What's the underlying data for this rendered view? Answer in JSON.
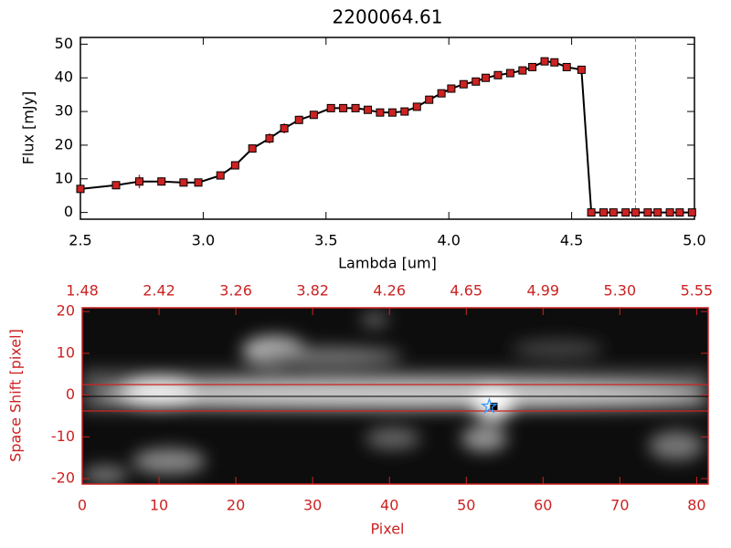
{
  "chart_data": [
    {
      "type": "line",
      "title": "2200064.61",
      "xlabel": "Lambda [um]",
      "ylabel": "Flux [mJy]",
      "x": [
        2.5,
        2.645,
        2.74,
        2.83,
        2.92,
        2.98,
        3.07,
        3.13,
        3.2,
        3.27,
        3.33,
        3.39,
        3.45,
        3.52,
        3.57,
        3.62,
        3.67,
        3.72,
        3.77,
        3.82,
        3.87,
        3.92,
        3.97,
        4.01,
        4.06,
        4.11,
        4.15,
        4.2,
        4.25,
        4.3,
        4.34,
        4.39,
        4.43,
        4.48,
        4.54,
        4.58,
        4.63,
        4.67,
        4.72,
        4.76,
        4.81,
        4.85,
        4.9,
        4.94,
        4.99
      ],
      "values": [
        7,
        8.1,
        9.2,
        9.2,
        8.9,
        8.9,
        11,
        14,
        19,
        22,
        25,
        27.5,
        29,
        31,
        31,
        31,
        30.5,
        29.7,
        29.7,
        30,
        31.4,
        33.5,
        35.4,
        36.8,
        38.1,
        38.9,
        40,
        40.8,
        41.4,
        42.2,
        43.2,
        44.9,
        44.6,
        43.2,
        42.4,
        0,
        0,
        0,
        0,
        0,
        0,
        0,
        0,
        0,
        0
      ],
      "errors": [
        1,
        1.2,
        2,
        1.2,
        0.8,
        0.8,
        1,
        1.2,
        1.2,
        1.5,
        1.5,
        1.2,
        1,
        1,
        1,
        0.8,
        0.8,
        0.8,
        0.8,
        0.8,
        1,
        1,
        1,
        1,
        1,
        1,
        1,
        1,
        1,
        1,
        1,
        1,
        1,
        1,
        1,
        0,
        0,
        0,
        0,
        0,
        0,
        0,
        0,
        0,
        0
      ],
      "color": "#000000",
      "marker_color": "#cc2222",
      "baseline_color": "#cc2222",
      "reference_x": 4.76,
      "reference_color": "#3399cc",
      "xlim": [
        2.5,
        5.0
      ],
      "ylim": [
        -2,
        52
      ],
      "xticks": [
        2.5,
        {
          "value": 3,
          "label": "3.0"
        },
        3.5,
        {
          "value": 4,
          "label": "4.0"
        },
        4.5,
        {
          "value": 5,
          "label": "5.0"
        }
      ],
      "yticks": [
        0,
        10,
        20,
        30,
        40,
        50
      ]
    },
    {
      "type": "image",
      "xlabel": "Pixel",
      "ylabel": "Space Shift [pixel]",
      "axis_color": "#cc2222",
      "xlim": [
        0,
        81.5
      ],
      "ylim": [
        -21.3,
        20.9
      ],
      "xticks": [
        0,
        10,
        20,
        30,
        40,
        50,
        60,
        70,
        80
      ],
      "yticks": [
        -20,
        -10,
        0,
        10,
        20
      ],
      "x2ticks": [
        {
          "value": 0,
          "label": "1.48"
        },
        {
          "value": 10,
          "label": "2.42"
        },
        {
          "value": 20,
          "label": "3.26"
        },
        {
          "value": 30,
          "label": "3.82"
        },
        {
          "value": 40,
          "label": "4.26"
        },
        {
          "value": 50,
          "label": "4.65"
        },
        {
          "value": 60,
          "label": "4.99"
        },
        {
          "value": 70,
          "label": "5.30"
        },
        {
          "value": 80,
          "label": "5.55"
        }
      ],
      "aperture": [
        -3.8,
        2.5
      ],
      "aperture_color": "#cc2222",
      "center": -0.3,
      "marker": {
        "x": 53,
        "y": -2.7
      },
      "marker_color": "#3399ff"
    }
  ]
}
